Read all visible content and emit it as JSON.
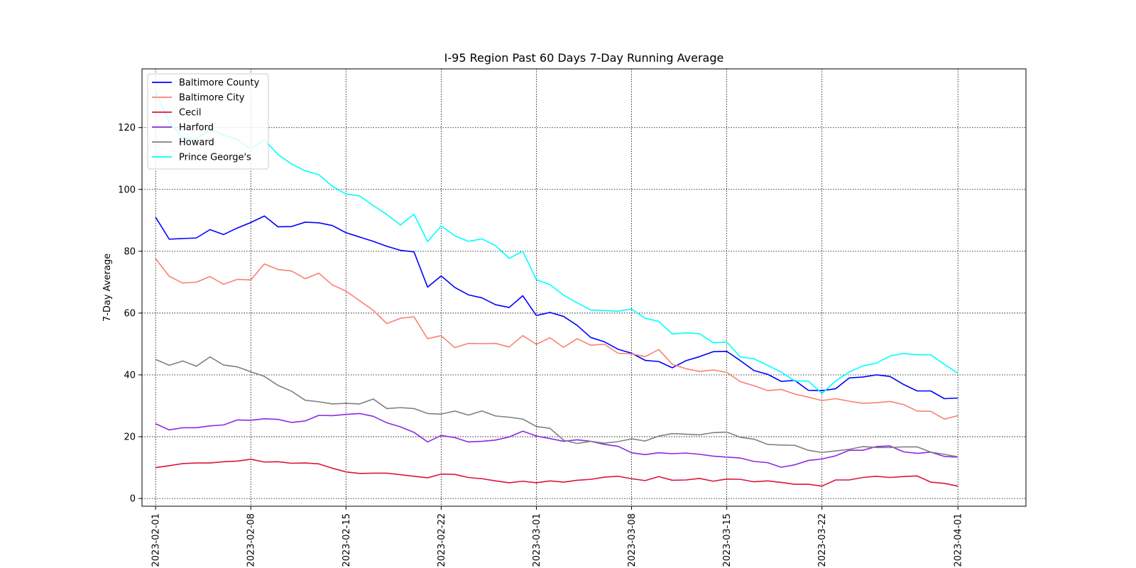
{
  "chart_data": {
    "type": "line",
    "title": "I-95 Region Past 60 Days 7-Day Running Average",
    "xlabel": "",
    "ylabel": "7-Day Average",
    "ylim": [
      -2.5,
      139
    ],
    "xlim": [
      "2023-01-31",
      "2023-04-06"
    ],
    "grid": true,
    "grid_style": "dotted",
    "legend_position": "top-left",
    "y_ticks": [
      0,
      20,
      40,
      60,
      80,
      100,
      120
    ],
    "x_ticks": [
      "2023-02-01",
      "2023-02-08",
      "2023-02-15",
      "2023-02-22",
      "2023-03-01",
      "2023-03-08",
      "2023-03-15",
      "2023-03-22",
      "2023-04-01"
    ],
    "x_start": "2023-02-01",
    "series": [
      {
        "name": "Baltimore County",
        "color": "#0000ff",
        "values": [
          91,
          83.9,
          84.1,
          84.3,
          87,
          85.4,
          87.5,
          89.3,
          91.4,
          87.9,
          88,
          89.4,
          89.2,
          88.3,
          86,
          84.6,
          83.2,
          81.6,
          80.3,
          79.8,
          68.4,
          72,
          68.3,
          65.9,
          64.9,
          62.7,
          61.8,
          65.6,
          59.2,
          60.2,
          58.9,
          56,
          52.1,
          50.7,
          48.3,
          47,
          44.7,
          44.3,
          42.3,
          44.6,
          45.9,
          47.5,
          47.6,
          44.6,
          41.4,
          40.2,
          37.9,
          38.2,
          35,
          34.9,
          35.5,
          39,
          39.3,
          40,
          39.5,
          36.9,
          34.8,
          34.8,
          32.3,
          32.5
        ]
      },
      {
        "name": "Baltimore City",
        "color": "#fa8072",
        "values": [
          77.6,
          71.9,
          69.7,
          70,
          71.8,
          69.3,
          70.9,
          70.7,
          75.9,
          74.1,
          73.6,
          71.1,
          72.9,
          69.1,
          67.1,
          64,
          60.9,
          56.6,
          58.3,
          58.8,
          51.7,
          52.7,
          48.8,
          50.2,
          50.1,
          50.2,
          49,
          52.7,
          49.9,
          52,
          48.9,
          51.7,
          49.6,
          49.9,
          47,
          46.8,
          45.9,
          48.2,
          43.4,
          42,
          41.1,
          41.6,
          40.8,
          37.8,
          36.5,
          34.9,
          35.3,
          33.8,
          32.8,
          31.7,
          32.3,
          31.5,
          30.8,
          31,
          31.4,
          30.4,
          28.3,
          28.2,
          25.7,
          26.8
        ]
      },
      {
        "name": "Cecil",
        "color": "#dc143c",
        "values": [
          10,
          10.6,
          11.3,
          11.5,
          11.5,
          11.9,
          12.1,
          12.7,
          11.8,
          11.9,
          11.4,
          11.5,
          11.2,
          9.8,
          8.6,
          8.1,
          8.2,
          8.2,
          7.7,
          7.2,
          6.7,
          7.9,
          7.8,
          6.8,
          6.4,
          5.7,
          5.1,
          5.6,
          5.1,
          5.7,
          5.3,
          5.9,
          6.2,
          6.9,
          7.2,
          6.4,
          5.8,
          7.1,
          5.9,
          6,
          6.5,
          5.6,
          6.3,
          6.2,
          5.4,
          5.7,
          5.2,
          4.6,
          4.6,
          4,
          6,
          6,
          6.8,
          7.2,
          6.8,
          7.1,
          7.3,
          5.3,
          4.9,
          4
        ]
      },
      {
        "name": "Harford",
        "color": "#8a2be2",
        "values": [
          24.2,
          22.2,
          22.9,
          22.9,
          23.5,
          23.8,
          25.4,
          25.3,
          25.8,
          25.6,
          24.6,
          25.1,
          26.9,
          26.8,
          27.2,
          27.5,
          26.6,
          24.5,
          23.2,
          21.4,
          18.3,
          20.4,
          19.7,
          18.3,
          18.5,
          18.9,
          19.9,
          21.8,
          20.2,
          19.4,
          18.5,
          19,
          18.5,
          17.5,
          16.9,
          14.8,
          14.2,
          14.8,
          14.5,
          14.7,
          14.3,
          13.7,
          13.4,
          13.1,
          12,
          11.6,
          10.1,
          10.9,
          12.3,
          12.8,
          13.8,
          15.6,
          15.6,
          16.8,
          17,
          15.1,
          14.6,
          15,
          13.6,
          13.4
        ]
      },
      {
        "name": "Howard",
        "color": "#808080",
        "values": [
          45,
          43.1,
          44.5,
          42.8,
          45.8,
          43.2,
          42.6,
          41,
          39.5,
          36.6,
          34.7,
          31.8,
          31.3,
          30.6,
          30.8,
          30.6,
          32.2,
          29.1,
          29.4,
          29.1,
          27.5,
          27.3,
          28.3,
          27,
          28.3,
          26.7,
          26.3,
          25.7,
          23.3,
          22.7,
          18.9,
          17.8,
          18.5,
          17.9,
          18.4,
          19.3,
          18.6,
          20.2,
          21,
          20.8,
          20.6,
          21.3,
          21.5,
          19.8,
          19.2,
          17.5,
          17.3,
          17.2,
          15.6,
          14.9,
          15.4,
          15.9,
          16.8,
          16.5,
          16.5,
          16.7,
          16.7,
          15,
          14.3,
          13.5
        ]
      },
      {
        "name": "Prince George's",
        "color": "#00ffff",
        "values": [
          131.5,
          121.8,
          116.7,
          116.4,
          119.3,
          117.6,
          116.1,
          113.1,
          116,
          111.3,
          108.2,
          106,
          104.8,
          101,
          98.5,
          97.9,
          94.8,
          91.9,
          88.5,
          92,
          83.1,
          88.2,
          85,
          83.2,
          84,
          81.8,
          77.7,
          80,
          70.8,
          69.2,
          65.8,
          63.3,
          61,
          60.8,
          60.6,
          61.3,
          58.3,
          57.3,
          53.2,
          53.6,
          53.3,
          50.4,
          50.6,
          45.8,
          45.2,
          43.1,
          40.9,
          38,
          38,
          34,
          38,
          40.9,
          42.9,
          43.8,
          46.1,
          46.9,
          46.5,
          46.5,
          43.4,
          40.5
        ]
      }
    ]
  }
}
